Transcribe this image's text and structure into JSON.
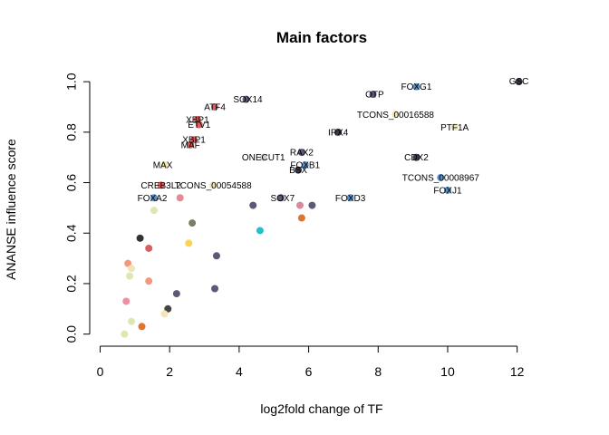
{
  "chart_data": {
    "type": "scatter",
    "title": "Main factors",
    "xlabel": "log2fold change of TF",
    "ylabel": "ANANSE influence score",
    "xlim": [
      -0.3,
      12.4
    ],
    "ylim": [
      -0.03,
      1.04
    ],
    "x_ticks": [
      0,
      2,
      4,
      6,
      8,
      10,
      12
    ],
    "y_ticks": [
      0.0,
      0.2,
      0.4,
      0.6,
      0.8,
      1.0
    ],
    "x_tick_labels": [
      "0",
      "2",
      "4",
      "6",
      "8",
      "10",
      "12"
    ],
    "y_tick_labels": [
      "0.0",
      "0.2",
      "0.4",
      "0.6",
      "0.8",
      "1.0"
    ],
    "grid": false,
    "points": [
      {
        "x": 12.05,
        "y": 1.0,
        "color": "#3a3a4a",
        "label": "GSC",
        "lx": 0,
        "ly": 0.003
      },
      {
        "x": 9.1,
        "y": 0.98,
        "color": "#5b8fc7",
        "label": "FOXG1",
        "lx": 0,
        "ly": 0
      },
      {
        "x": 7.85,
        "y": 0.95,
        "color": "#5a5a78",
        "label": "OTP",
        "lx": 0.05,
        "ly": 0
      },
      {
        "x": 8.5,
        "y": 0.87,
        "color": "#ede6b6",
        "label": "TCONS_00016588",
        "lx": 0,
        "ly": 0
      },
      {
        "x": 10.2,
        "y": 0.82,
        "color": "#ede6b6",
        "label": "PTF1A",
        "lx": 0,
        "ly": 0
      },
      {
        "x": 6.85,
        "y": 0.8,
        "color": "#3a3a4a",
        "label": "IRX4",
        "lx": 0,
        "ly": 0
      },
      {
        "x": 4.2,
        "y": 0.93,
        "color": "#5a5a78",
        "label": "SOX14",
        "lx": 0.05,
        "ly": 0
      },
      {
        "x": 3.3,
        "y": 0.9,
        "color": "#d95f5f",
        "label": "ATF4",
        "lx": 0,
        "ly": 0
      },
      {
        "x": 2.8,
        "y": 0.85,
        "color": "#d95f5f",
        "label": "XBP1",
        "lx": 0,
        "ly": 0
      },
      {
        "x": 2.85,
        "y": 0.83,
        "color": "#d95f5f",
        "label": "ETV1",
        "lx": 0,
        "ly": 0
      },
      {
        "x": 2.7,
        "y": 0.77,
        "color": "#d95f5f",
        "label": "XBP1",
        "lx": 0,
        "ly": 0
      },
      {
        "x": 2.6,
        "y": 0.75,
        "color": "#d95f5f",
        "label": "MAF",
        "lx": 0,
        "ly": 0
      },
      {
        "x": 1.85,
        "y": 0.67,
        "color": "#ede6b6",
        "label": "MAX",
        "lx": -0.05,
        "ly": 0
      },
      {
        "x": 5.8,
        "y": 0.72,
        "color": "#5a5a78",
        "label": "RAX2",
        "lx": 0,
        "ly": 0
      },
      {
        "x": 4.7,
        "y": 0.7,
        "color": "#cccccc",
        "label": "ONECUT1",
        "lx": 0,
        "ly": 0
      },
      {
        "x": 5.9,
        "y": 0.67,
        "color": "#5b8fc7",
        "label": "FOXB1",
        "lx": 0,
        "ly": 0
      },
      {
        "x": 5.7,
        "y": 0.65,
        "color": "#3a3a4a",
        "label": "BSX",
        "lx": 0,
        "ly": 0
      },
      {
        "x": 9.1,
        "y": 0.7,
        "color": "#3a3a4a",
        "label": "CDX2",
        "lx": 0,
        "ly": 0
      },
      {
        "x": 9.8,
        "y": 0.62,
        "color": "#5b8fc7",
        "label": "TCONS_00008967",
        "lx": 0,
        "ly": 0
      },
      {
        "x": 10.0,
        "y": 0.57,
        "color": "#5b8fc7",
        "label": "FOXJ1",
        "lx": 0,
        "ly": 0
      },
      {
        "x": 1.75,
        "y": 0.59,
        "color": "#d95f5f",
        "label": "CREB3L2",
        "lx": 0,
        "ly": 0
      },
      {
        "x": 3.25,
        "y": 0.59,
        "color": "#ede6b6",
        "label": "TCONS_00054588",
        "lx": 0,
        "ly": 0
      },
      {
        "x": 1.55,
        "y": 0.54,
        "color": "#5b8fc7",
        "label": "FOXA2",
        "lx": -0.05,
        "ly": 0
      },
      {
        "x": 5.2,
        "y": 0.54,
        "color": "#5a5a78",
        "label": "SOX7",
        "lx": 0.05,
        "ly": 0
      },
      {
        "x": 7.2,
        "y": 0.54,
        "color": "#5b8fc7",
        "label": "FOXD3",
        "lx": 0,
        "ly": 0
      },
      {
        "x": 2.3,
        "y": 0.54,
        "color": "#e88a96",
        "label": "",
        "lx": 0,
        "ly": 0
      },
      {
        "x": 4.4,
        "y": 0.51,
        "color": "#5a5a78",
        "label": "",
        "lx": 0,
        "ly": 0
      },
      {
        "x": 5.75,
        "y": 0.51,
        "color": "#d9899f",
        "label": "",
        "lx": 0,
        "ly": 0
      },
      {
        "x": 6.1,
        "y": 0.51,
        "color": "#5a5a78",
        "label": "",
        "lx": 0,
        "ly": 0
      },
      {
        "x": 1.55,
        "y": 0.49,
        "color": "#dde7b0",
        "label": "",
        "lx": 0,
        "ly": 0
      },
      {
        "x": 2.65,
        "y": 0.44,
        "color": "#7b7d66",
        "label": "",
        "lx": 0,
        "ly": 0
      },
      {
        "x": 4.6,
        "y": 0.41,
        "color": "#1fc3d0",
        "label": "",
        "lx": 0,
        "ly": 0
      },
      {
        "x": 5.8,
        "y": 0.46,
        "color": "#e3722a",
        "label": "",
        "lx": 0,
        "ly": 0
      },
      {
        "x": 1.15,
        "y": 0.38,
        "color": "#333333",
        "label": "",
        "lx": 0,
        "ly": 0
      },
      {
        "x": 2.55,
        "y": 0.36,
        "color": "#ffd34d",
        "label": "",
        "lx": 0,
        "ly": 0
      },
      {
        "x": 1.4,
        "y": 0.34,
        "color": "#d95f5f",
        "label": "",
        "lx": 0,
        "ly": 0
      },
      {
        "x": 3.35,
        "y": 0.31,
        "color": "#5a5a78",
        "label": "",
        "lx": 0,
        "ly": 0
      },
      {
        "x": 0.8,
        "y": 0.28,
        "color": "#f6967f",
        "label": "",
        "lx": 0,
        "ly": 0
      },
      {
        "x": 0.9,
        "y": 0.26,
        "color": "#ede6b6",
        "label": "",
        "lx": 0,
        "ly": 0
      },
      {
        "x": 0.85,
        "y": 0.23,
        "color": "#dde7b0",
        "label": "",
        "lx": 0,
        "ly": 0
      },
      {
        "x": 1.4,
        "y": 0.21,
        "color": "#f6967f",
        "label": "",
        "lx": 0,
        "ly": 0
      },
      {
        "x": 3.3,
        "y": 0.18,
        "color": "#5a5a78",
        "label": "",
        "lx": 0,
        "ly": 0
      },
      {
        "x": 2.2,
        "y": 0.16,
        "color": "#5a5a78",
        "label": "",
        "lx": 0,
        "ly": 0
      },
      {
        "x": 0.75,
        "y": 0.13,
        "color": "#f08fa2",
        "label": "",
        "lx": 0,
        "ly": 0
      },
      {
        "x": 1.95,
        "y": 0.1,
        "color": "#444444",
        "label": "",
        "lx": 0,
        "ly": 0
      },
      {
        "x": 1.85,
        "y": 0.08,
        "color": "#f6e5b8",
        "label": "",
        "lx": 0,
        "ly": 0
      },
      {
        "x": 0.9,
        "y": 0.05,
        "color": "#dde7b0",
        "label": "",
        "lx": 0,
        "ly": 0
      },
      {
        "x": 1.2,
        "y": 0.03,
        "color": "#e3722a",
        "label": "",
        "lx": 0,
        "ly": 0
      },
      {
        "x": 0.7,
        "y": 0.0,
        "color": "#dde7b0",
        "label": "",
        "lx": 0,
        "ly": 0
      }
    ]
  }
}
